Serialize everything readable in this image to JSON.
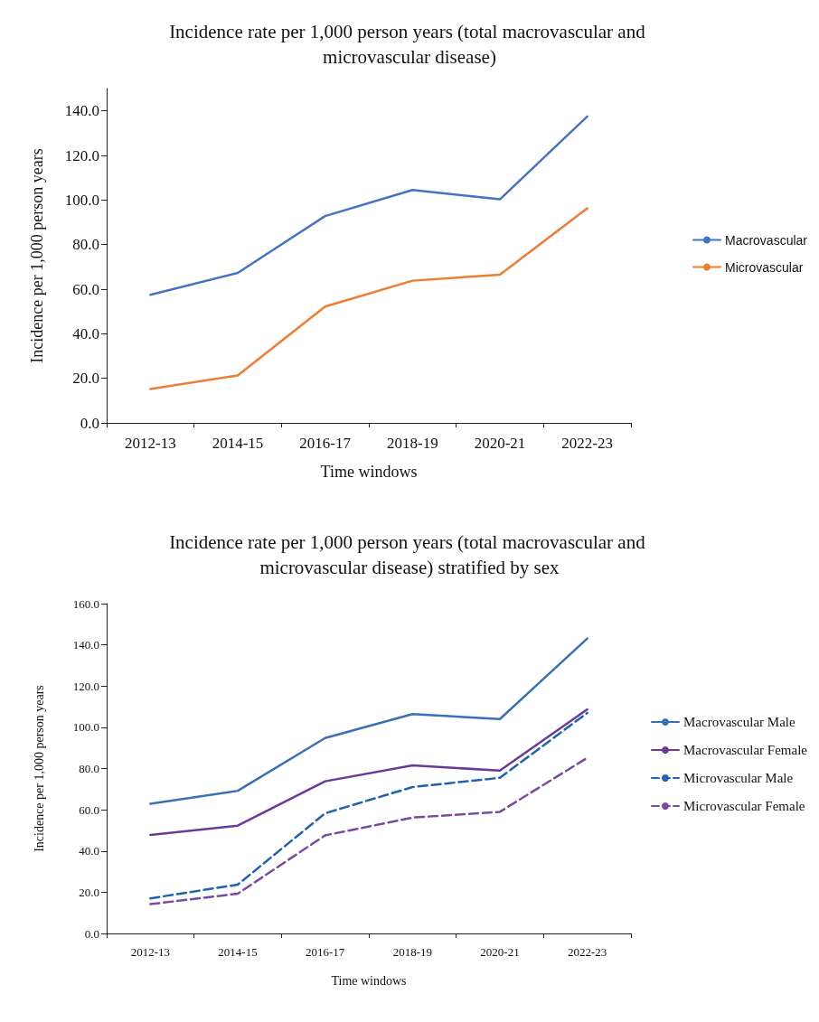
{
  "chart_data": [
    {
      "type": "line",
      "title": "Incidence rate per 1,000 person years (total macrovascular and microvascular disease)",
      "xlabel": "Time windows",
      "ylabel": "Incidence per 1,000 person years",
      "categories": [
        "2012-13",
        "2014-15",
        "2016-17",
        "2018-19",
        "2020-21",
        "2022-23"
      ],
      "series": [
        {
          "name": "Macrovascular",
          "color": "#4472c4",
          "values": [
            57.5,
            67.3,
            92.8,
            104.5,
            100.3,
            137.5
          ]
        },
        {
          "name": "Microvascular",
          "color": "#ed7d31",
          "values": [
            15.2,
            21.3,
            52.2,
            63.8,
            66.5,
            96.3
          ]
        }
      ],
      "ylim": [
        0,
        150
      ],
      "yticks": [
        {
          "value": 0,
          "label": "0.0"
        },
        {
          "value": 20,
          "label": "20.0"
        },
        {
          "value": 40,
          "label": "40.0"
        },
        {
          "value": 60,
          "label": "60.0"
        },
        {
          "value": 80,
          "label": "80.0"
        },
        {
          "value": 100,
          "label": "100.0"
        },
        {
          "value": 120,
          "label": "120.0"
        },
        {
          "value": 140,
          "label": "140.0"
        }
      ],
      "grid": false,
      "legend": "right",
      "marker": "none",
      "line_style": "solid"
    },
    {
      "type": "line",
      "title": "Incidence rate per 1,000 person years (total macrovascular and microvascular disease) stratified by sex",
      "xlabel": "Time windows",
      "ylabel": "Incidence per 1,000 person years",
      "categories": [
        "2012-13",
        "2014-15",
        "2016-17",
        "2018-19",
        "2020-21",
        "2022-23"
      ],
      "series": [
        {
          "name": "Macrovascular Male",
          "color": "#3a70b8",
          "values": [
            62.9,
            69.2,
            94.8,
            106.4,
            104,
            143.1
          ],
          "line_style": "solid"
        },
        {
          "name": "Macrovascular Female",
          "color": "#6a3a9a",
          "values": [
            47.8,
            52.3,
            73.8,
            81.5,
            79,
            108.7
          ],
          "line_style": "solid"
        },
        {
          "name": "Microvascular Male",
          "color": "#1f63b0",
          "values": [
            17,
            23.7,
            58.3,
            71,
            75.5,
            107
          ],
          "line_style": "dashed"
        },
        {
          "name": "Microvascular Female",
          "color": "#7a4aa0",
          "values": [
            14.2,
            19.3,
            47.6,
            56.2,
            59,
            85.2
          ],
          "line_style": "dashed"
        }
      ],
      "ylim": [
        0,
        160
      ],
      "yticks": [
        {
          "value": 0,
          "label": "0.0"
        },
        {
          "value": 20,
          "label": "20.0"
        },
        {
          "value": 40,
          "label": "40.0"
        },
        {
          "value": 60,
          "label": "60.0"
        },
        {
          "value": 80,
          "label": "80.0"
        },
        {
          "value": 100,
          "label": "100.0"
        },
        {
          "value": 120,
          "label": "120.0"
        },
        {
          "value": 140,
          "label": "140.0"
        },
        {
          "value": 160,
          "label": "160.0"
        }
      ],
      "grid": false,
      "legend": "right",
      "marker": "none"
    }
  ]
}
